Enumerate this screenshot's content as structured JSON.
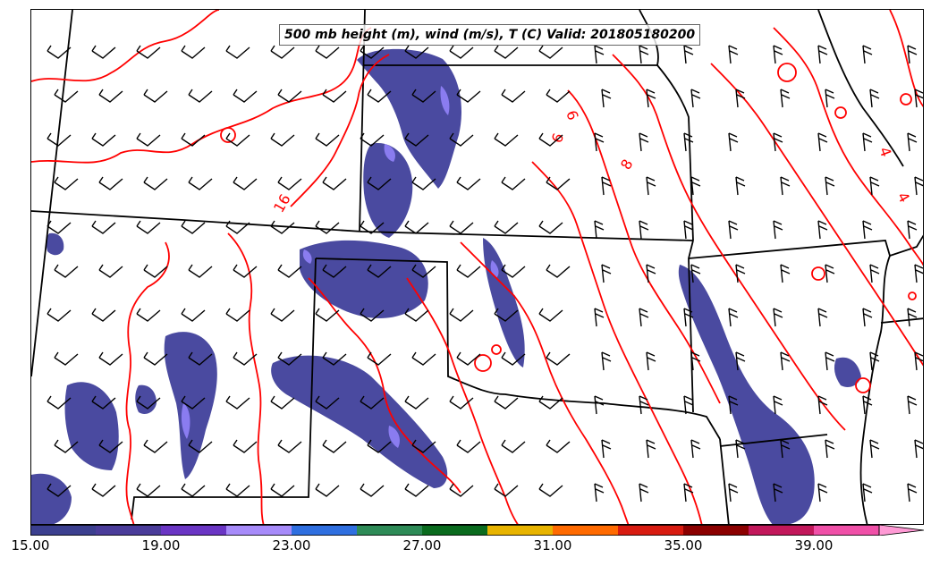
{
  "title": "500 mb height (m), wind (m/s), T (C) Valid: 201805180200",
  "contour_labels": [
    "6",
    "6",
    "8",
    "16",
    "4",
    "4"
  ],
  "colorbar": {
    "tick_labels": [
      "15.00",
      "19.00",
      "23.00",
      "27.00",
      "31.00",
      "35.00",
      "39.00"
    ],
    "colors": [
      "#3b3f8f",
      "#4a3c9a",
      "#6a35c4",
      "#a78bfa",
      "#2f6fe0",
      "#2e8b57",
      "#0a6b1e",
      "#e8b400",
      "#ff6a00",
      "#d81b10",
      "#8b0000",
      "#c2185b",
      "#f050a8",
      "#ff9ad5"
    ]
  },
  "colors": {
    "temperature_contour": "#ff0000",
    "borders": "#000000",
    "wind_barbs": "#000000",
    "shading_low": "#4a4aa0"
  }
}
